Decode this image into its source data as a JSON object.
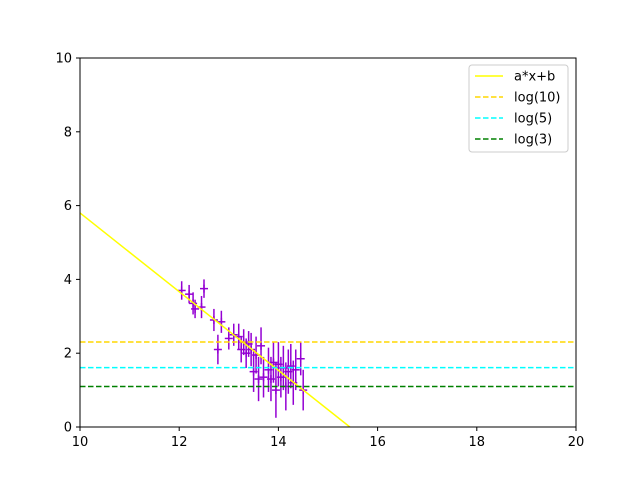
{
  "chart_data": {
    "type": "scatter",
    "xlim": [
      10,
      20
    ],
    "ylim": [
      0,
      10
    ],
    "x_ticks": [
      10,
      12,
      14,
      16,
      18,
      20
    ],
    "y_ticks": [
      0,
      2,
      4,
      6,
      8,
      10
    ],
    "grid": false,
    "legend_position": "top-right",
    "series": [
      {
        "name": "a*x+b",
        "kind": "line",
        "style": "solid",
        "color": "#ffff00",
        "x": [
          10,
          15.44
        ],
        "y": [
          5.8,
          0
        ]
      },
      {
        "name": "log(10)",
        "kind": "hline",
        "style": "dashed",
        "color": "#ffd700",
        "y": 2.3026
      },
      {
        "name": "log(5)",
        "kind": "hline",
        "style": "dashed",
        "color": "#00ffff",
        "y": 1.6094
      },
      {
        "name": "log(3)",
        "kind": "hline",
        "style": "dashed",
        "color": "#008000",
        "y": 1.0986
      }
    ],
    "points": {
      "color": "#9400d3",
      "marker": "+",
      "data": [
        {
          "x": 12.05,
          "y": 3.7,
          "yerr": 0.25
        },
        {
          "x": 12.2,
          "y": 3.6,
          "yerr": 0.25
        },
        {
          "x": 12.28,
          "y": 3.35,
          "yerr": 0.3
        },
        {
          "x": 12.32,
          "y": 3.2,
          "yerr": 0.25
        },
        {
          "x": 12.45,
          "y": 3.25,
          "yerr": 0.3
        },
        {
          "x": 12.5,
          "y": 3.75,
          "yerr": 0.25
        },
        {
          "x": 12.7,
          "y": 2.9,
          "yerr": 0.3
        },
        {
          "x": 12.78,
          "y": 2.1,
          "yerr": 0.4
        },
        {
          "x": 12.85,
          "y": 2.85,
          "yerr": 0.3
        },
        {
          "x": 13.0,
          "y": 2.4,
          "yerr": 0.3
        },
        {
          "x": 13.1,
          "y": 2.5,
          "yerr": 0.3
        },
        {
          "x": 13.2,
          "y": 2.45,
          "yerr": 0.35
        },
        {
          "x": 13.25,
          "y": 2.1,
          "yerr": 0.35
        },
        {
          "x": 13.3,
          "y": 2.3,
          "yerr": 0.35
        },
        {
          "x": 13.35,
          "y": 2.0,
          "yerr": 0.4
        },
        {
          "x": 13.4,
          "y": 2.25,
          "yerr": 0.35
        },
        {
          "x": 13.45,
          "y": 2.1,
          "yerr": 0.45
        },
        {
          "x": 13.5,
          "y": 1.5,
          "yerr": 0.55
        },
        {
          "x": 13.55,
          "y": 1.95,
          "yerr": 0.5
        },
        {
          "x": 13.6,
          "y": 1.3,
          "yerr": 0.6
        },
        {
          "x": 13.65,
          "y": 2.2,
          "yerr": 0.5
        },
        {
          "x": 13.7,
          "y": 1.35,
          "yerr": 0.55
        },
        {
          "x": 13.8,
          "y": 1.55,
          "yerr": 0.6
        },
        {
          "x": 13.85,
          "y": 1.3,
          "yerr": 0.6
        },
        {
          "x": 13.9,
          "y": 1.75,
          "yerr": 0.55
        },
        {
          "x": 13.95,
          "y": 1.0,
          "yerr": 0.75
        },
        {
          "x": 14.0,
          "y": 1.7,
          "yerr": 0.6
        },
        {
          "x": 14.05,
          "y": 1.35,
          "yerr": 0.55
        },
        {
          "x": 14.1,
          "y": 1.6,
          "yerr": 0.6
        },
        {
          "x": 14.15,
          "y": 1.1,
          "yerr": 0.65
        },
        {
          "x": 14.2,
          "y": 1.5,
          "yerr": 0.6
        },
        {
          "x": 14.25,
          "y": 1.65,
          "yerr": 0.6
        },
        {
          "x": 14.3,
          "y": 1.2,
          "yerr": 0.6
        },
        {
          "x": 14.35,
          "y": 1.55,
          "yerr": 0.55
        },
        {
          "x": 14.45,
          "y": 1.85,
          "yerr": 0.45
        },
        {
          "x": 14.5,
          "y": 1.0,
          "yerr": 0.55
        }
      ]
    }
  }
}
